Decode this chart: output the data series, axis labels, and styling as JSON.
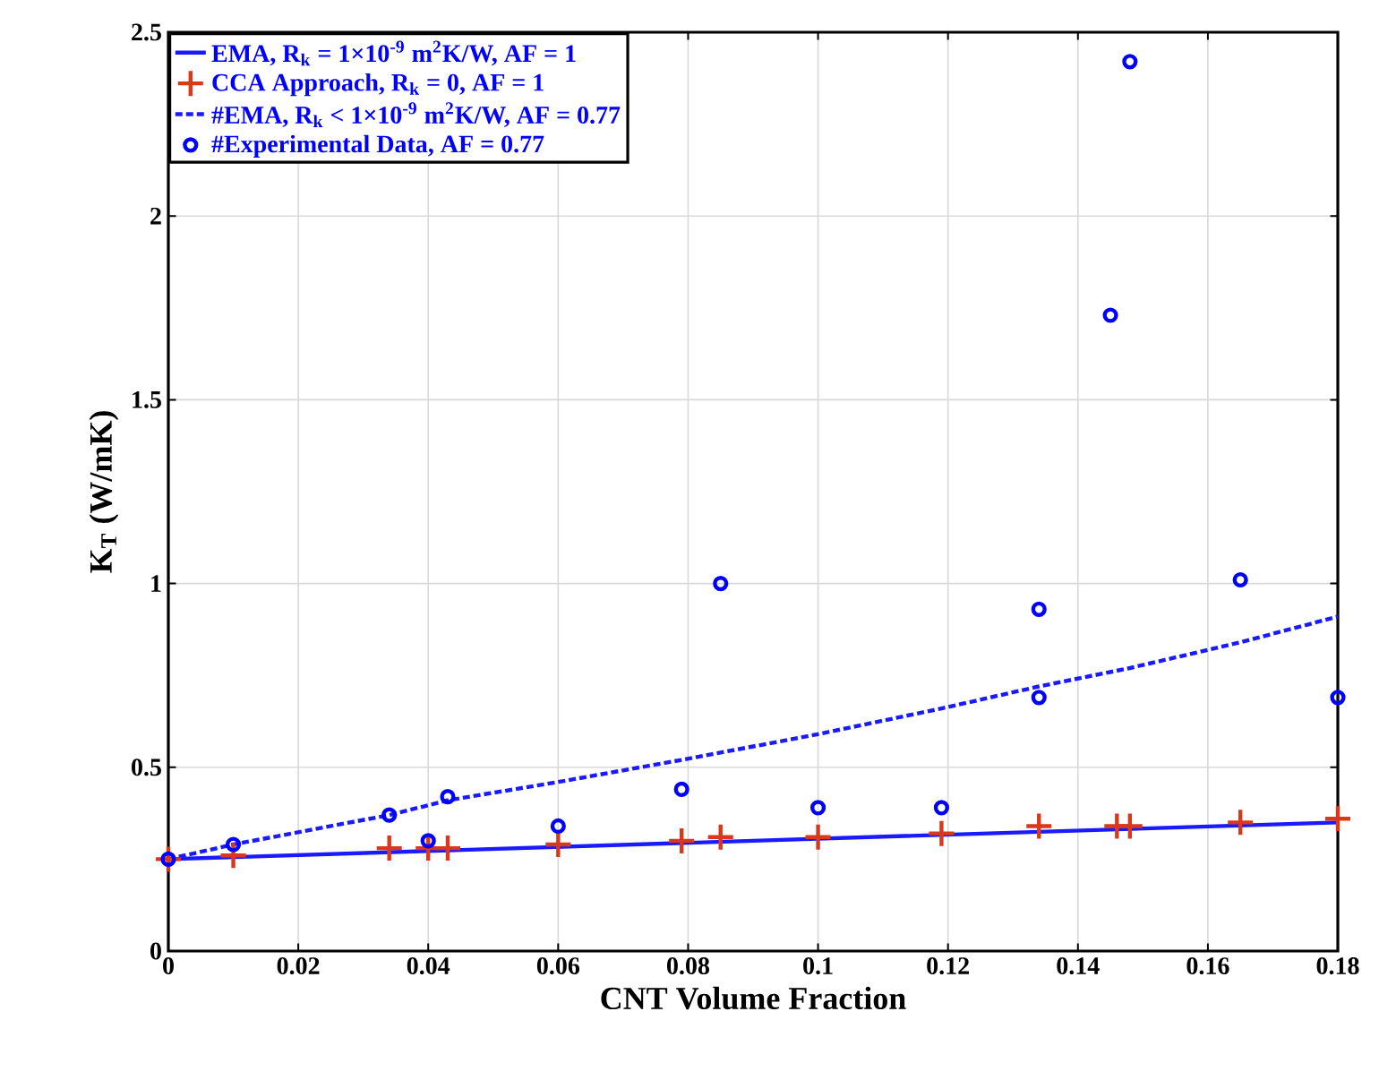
{
  "chart_data": {
    "type": "line",
    "xlabel": "CNT Volume Fraction",
    "ylabel": "K$_{T}$ (W/mK)",
    "xlim": [
      0,
      0.18
    ],
    "ylim": [
      0,
      2.5
    ],
    "xticks": [
      0,
      0.02,
      0.04,
      0.06,
      0.08,
      0.1,
      0.12,
      0.14,
      0.16,
      0.18
    ],
    "yticks": [
      0,
      0.5,
      1,
      1.5,
      2,
      2.5
    ],
    "grid": true,
    "legend": "top left",
    "series": [
      {
        "name": "EMA, R$_{k}$ = 1×10$^{-9}$ m$^{2}$K/W, AF = 1",
        "line_style": "solid",
        "color": "#1a1aff",
        "x": [
          0,
          0.09,
          0.18
        ],
        "values": [
          0.25,
          0.3,
          0.35
        ]
      },
      {
        "name": "CCA Approach, R$_{k}$ = 0, AF = 1",
        "type": "scatter",
        "marker": "cross",
        "color": "#d9381a",
        "x": [
          0,
          0.01,
          0.034,
          0.04,
          0.043,
          0.06,
          0.079,
          0.085,
          0.1,
          0.119,
          0.134,
          0.146,
          0.148,
          0.165,
          0.18
        ],
        "values": [
          0.25,
          0.26,
          0.28,
          0.28,
          0.28,
          0.29,
          0.3,
          0.31,
          0.31,
          0.32,
          0.34,
          0.34,
          0.34,
          0.35,
          0.36
        ]
      },
      {
        "name": "#EMA, R$_{k}$ < 1×10$^{-9}$ m$^{2}$K/W, AF = 0.77",
        "line_style": "dashed",
        "color": "#1a1aff",
        "x": [
          0,
          0.01,
          0.034,
          0.043,
          0.06,
          0.079,
          0.085,
          0.1,
          0.119,
          0.134,
          0.148,
          0.165,
          0.18
        ],
        "values": [
          0.25,
          0.29,
          0.37,
          0.41,
          0.46,
          0.52,
          0.54,
          0.59,
          0.66,
          0.72,
          0.77,
          0.84,
          0.91
        ]
      },
      {
        "name": "#Experimental Data, AF = 0.77",
        "type": "scatter",
        "marker": "circle",
        "color": "#0000ff",
        "x": [
          0,
          0.01,
          0.034,
          0.04,
          0.043,
          0.06,
          0.079,
          0.085,
          0.1,
          0.119,
          0.134,
          0.134,
          0.145,
          0.148,
          0.165,
          0.18
        ],
        "values": [
          0.25,
          0.29,
          0.37,
          0.3,
          0.42,
          0.34,
          0.44,
          1.0,
          0.39,
          0.39,
          0.93,
          0.69,
          1.73,
          2.42,
          1.01,
          0.69
        ]
      }
    ]
  }
}
